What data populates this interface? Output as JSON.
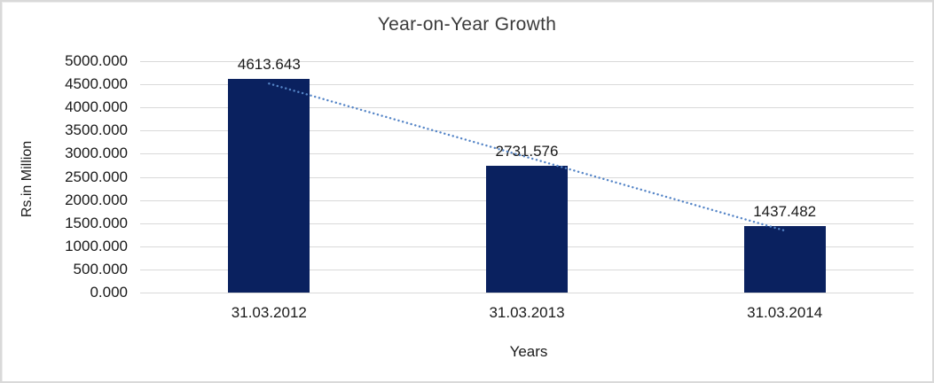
{
  "chart_data": {
    "type": "bar",
    "title": "Year-on-Year Growth",
    "xlabel": "Years",
    "ylabel": "Rs.in Million",
    "categories": [
      "31.03.2012",
      "31.03.2013",
      "31.03.2014"
    ],
    "values": [
      4613.643,
      2731.576,
      1437.482
    ],
    "data_labels": [
      "4613.643",
      "2731.576",
      "1437.482"
    ],
    "ylim": [
      0,
      5000
    ],
    "ytick_step": 500,
    "ytick_labels": [
      "0.000",
      "500.000",
      "1000.000",
      "1500.000",
      "2000.000",
      "2500.000",
      "3000.000",
      "3500.000",
      "4000.000",
      "4500.000",
      "5000.000"
    ],
    "grid": "horizontal",
    "legend": "none",
    "trendline": {
      "type": "linear",
      "style": "dotted",
      "color": "#5585C7"
    },
    "colors": {
      "bar": "#0A215F",
      "gridline": "#D9D9D9",
      "title_text": "#3B3B3B",
      "label_text": "#1A1A1A",
      "frame_border": "#D9D9D9"
    }
  }
}
